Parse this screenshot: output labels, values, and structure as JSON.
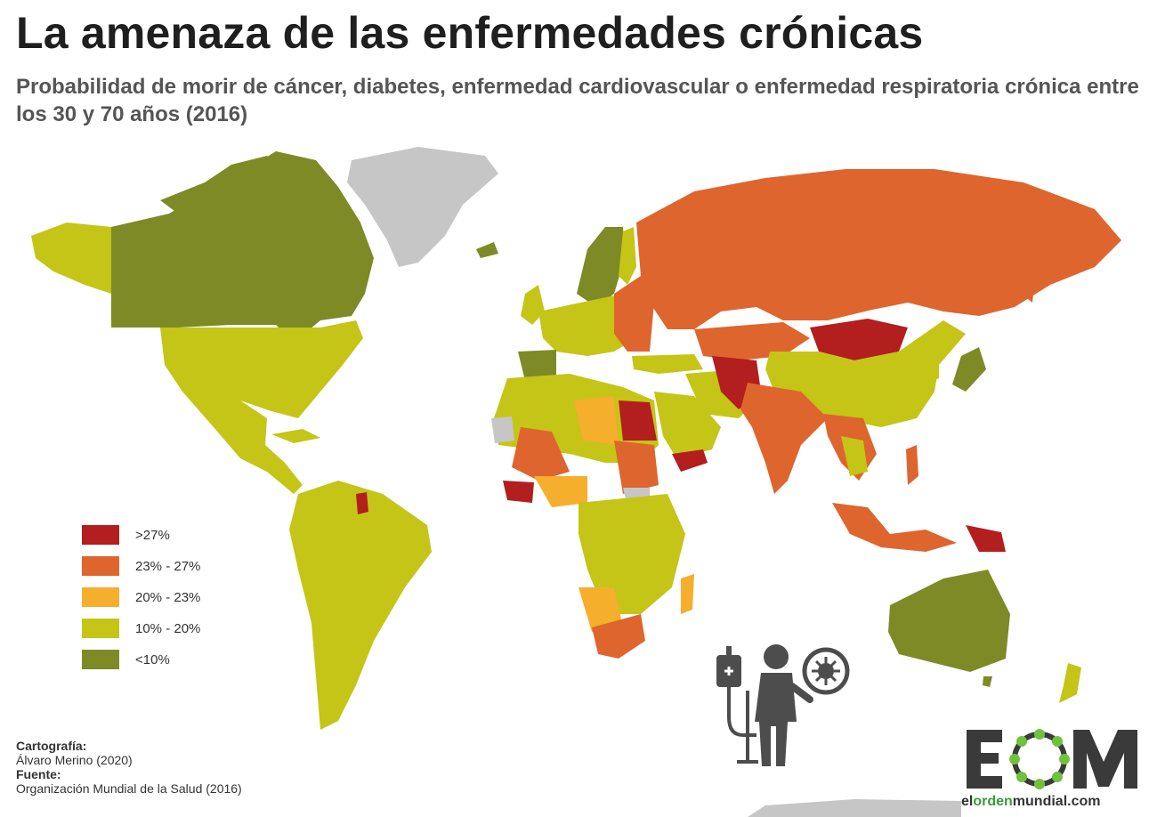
{
  "title": "La amenaza de las enfermedades crónicas",
  "subtitle": "Probabilidad de morir de cáncer, diabetes, enfermedad cardiovascular o enfermedad respiratoria crónica entre los 30 y 70 años (2016)",
  "colors": {
    "very_high": "#b31e1e",
    "high": "#de652e",
    "medium": "#f6ae2d",
    "low": "#c4c516",
    "very_low": "#7e8a26",
    "no_data": "#c6c6c6"
  },
  "legend": [
    {
      "label": ">27%",
      "color": "#b31e1e"
    },
    {
      "label": "23% - 27%",
      "color": "#de652e"
    },
    {
      "label": "20% - 23%",
      "color": "#f6ae2d"
    },
    {
      "label": "10% - 20%",
      "color": "#c4c516"
    },
    {
      "label": "<10%",
      "color": "#7e8a26"
    }
  ],
  "credits": {
    "cartography_heading": "Cartografía:",
    "cartography_value": "Álvaro Merino (2020)",
    "source_heading": "Fuente:",
    "source_value": "Organización Mundial de la Salud (2016)"
  },
  "logo": {
    "letters": "EOM",
    "url_part1": "el",
    "url_part2": "orden",
    "url_part3": "mundial",
    "url_part4": ".com"
  },
  "icons": [
    "hospital-patient-icon",
    "virus-icon"
  ]
}
